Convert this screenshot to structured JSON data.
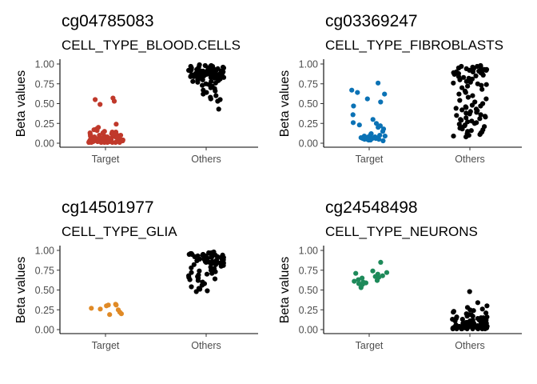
{
  "chart_data": [
    {
      "type": "scatter",
      "title": "cg04785083",
      "subtitle": "CELL_TYPE_BLOOD.CELLS",
      "ylabel": "Beta values",
      "categories": [
        "Target",
        "Others"
      ],
      "ylim": [
        0,
        1
      ],
      "yticks": [
        "0.00",
        "0.25",
        "0.50",
        "0.75",
        "1.00"
      ],
      "target_color": "#c0392b",
      "series": [
        {
          "name": "Target",
          "color": "#c0392b",
          "values": [
            0.57,
            0.55,
            0.53,
            0.49,
            0.24,
            0.2,
            0.18,
            0.17,
            0.16,
            0.15,
            0.14,
            0.14,
            0.13,
            0.13,
            0.12,
            0.12,
            0.11,
            0.11,
            0.1,
            0.1,
            0.1,
            0.09,
            0.09,
            0.09,
            0.08,
            0.08,
            0.08,
            0.08,
            0.07,
            0.07,
            0.07,
            0.07,
            0.06,
            0.06,
            0.06,
            0.06,
            0.06,
            0.05,
            0.05,
            0.05,
            0.05,
            0.05,
            0.05,
            0.04,
            0.04,
            0.04,
            0.04,
            0.04,
            0.04,
            0.03,
            0.03,
            0.03,
            0.03,
            0.03,
            0.03,
            0.03,
            0.02,
            0.02,
            0.02,
            0.02,
            0.02,
            0.02,
            0.02,
            0.02,
            0.01,
            0.01,
            0.01,
            0.01,
            0.01,
            0.01,
            0.01,
            0.01,
            0.01
          ]
        },
        {
          "name": "Others",
          "color": "#000000",
          "values": [
            0.99,
            0.98,
            0.98,
            0.97,
            0.97,
            0.97,
            0.96,
            0.96,
            0.96,
            0.95,
            0.95,
            0.95,
            0.95,
            0.94,
            0.94,
            0.94,
            0.94,
            0.93,
            0.93,
            0.93,
            0.93,
            0.93,
            0.92,
            0.92,
            0.92,
            0.92,
            0.92,
            0.91,
            0.91,
            0.91,
            0.91,
            0.91,
            0.9,
            0.9,
            0.9,
            0.9,
            0.9,
            0.89,
            0.89,
            0.89,
            0.89,
            0.89,
            0.88,
            0.88,
            0.88,
            0.88,
            0.88,
            0.87,
            0.87,
            0.87,
            0.87,
            0.86,
            0.86,
            0.86,
            0.86,
            0.85,
            0.85,
            0.85,
            0.85,
            0.84,
            0.84,
            0.84,
            0.83,
            0.83,
            0.83,
            0.82,
            0.82,
            0.82,
            0.81,
            0.81,
            0.8,
            0.8,
            0.79,
            0.79,
            0.78,
            0.78,
            0.77,
            0.76,
            0.75,
            0.74,
            0.73,
            0.72,
            0.7,
            0.69,
            0.67,
            0.66,
            0.64,
            0.62,
            0.6,
            0.58,
            0.56,
            0.55,
            0.53,
            0.43
          ]
        }
      ]
    },
    {
      "type": "scatter",
      "title": "cg03369247",
      "subtitle": "CELL_TYPE_FIBROBLASTS",
      "ylabel": "Beta values",
      "categories": [
        "Target",
        "Others"
      ],
      "ylim": [
        0,
        1
      ],
      "yticks": [
        "0.00",
        "0.25",
        "0.50",
        "0.75",
        "1.00"
      ],
      "target_color": "#0b72b5",
      "series": [
        {
          "name": "Target",
          "color": "#0b72b5",
          "values": [
            0.76,
            0.67,
            0.64,
            0.62,
            0.56,
            0.52,
            0.47,
            0.36,
            0.3,
            0.26,
            0.25,
            0.23,
            0.22,
            0.2,
            0.18,
            0.15,
            0.12,
            0.11,
            0.1,
            0.09,
            0.09,
            0.08,
            0.08,
            0.07,
            0.07,
            0.06,
            0.06,
            0.06,
            0.05,
            0.05,
            0.05,
            0.04,
            0.04,
            0.04,
            0.03
          ]
        },
        {
          "name": "Others",
          "color": "#000000",
          "values": [
            0.98,
            0.97,
            0.97,
            0.96,
            0.96,
            0.95,
            0.95,
            0.94,
            0.94,
            0.93,
            0.93,
            0.92,
            0.92,
            0.91,
            0.91,
            0.9,
            0.9,
            0.89,
            0.89,
            0.88,
            0.88,
            0.87,
            0.86,
            0.85,
            0.84,
            0.83,
            0.82,
            0.81,
            0.8,
            0.79,
            0.78,
            0.77,
            0.76,
            0.75,
            0.74,
            0.73,
            0.72,
            0.7,
            0.68,
            0.66,
            0.64,
            0.62,
            0.6,
            0.58,
            0.56,
            0.54,
            0.52,
            0.5,
            0.48,
            0.47,
            0.46,
            0.45,
            0.44,
            0.43,
            0.42,
            0.41,
            0.4,
            0.39,
            0.38,
            0.37,
            0.36,
            0.35,
            0.34,
            0.33,
            0.32,
            0.31,
            0.3,
            0.29,
            0.28,
            0.27,
            0.26,
            0.25,
            0.24,
            0.23,
            0.22,
            0.21,
            0.2,
            0.19,
            0.18,
            0.17,
            0.16,
            0.15,
            0.14,
            0.13,
            0.12,
            0.11,
            0.1,
            0.09,
            0.08
          ]
        }
      ]
    },
    {
      "type": "scatter",
      "title": "cg14501977",
      "subtitle": "CELL_TYPE_GLIA",
      "ylabel": "Beta values",
      "categories": [
        "Target",
        "Others"
      ],
      "ylim": [
        0,
        1
      ],
      "yticks": [
        "0.00",
        "0.25",
        "0.50",
        "0.75",
        "1.00"
      ],
      "target_color": "#e08a26",
      "series": [
        {
          "name": "Target",
          "color": "#e08a26",
          "values": [
            0.32,
            0.31,
            0.31,
            0.3,
            0.27,
            0.26,
            0.25,
            0.22,
            0.2,
            0.19
          ]
        },
        {
          "name": "Others",
          "color": "#000000",
          "values": [
            0.98,
            0.97,
            0.97,
            0.96,
            0.96,
            0.95,
            0.95,
            0.95,
            0.94,
            0.94,
            0.94,
            0.93,
            0.93,
            0.93,
            0.92,
            0.92,
            0.92,
            0.91,
            0.91,
            0.91,
            0.9,
            0.9,
            0.9,
            0.89,
            0.89,
            0.89,
            0.88,
            0.88,
            0.88,
            0.87,
            0.87,
            0.86,
            0.86,
            0.85,
            0.85,
            0.84,
            0.84,
            0.83,
            0.83,
            0.82,
            0.82,
            0.81,
            0.8,
            0.79,
            0.78,
            0.77,
            0.76,
            0.75,
            0.74,
            0.73,
            0.72,
            0.71,
            0.7,
            0.69,
            0.68,
            0.67,
            0.66,
            0.65,
            0.64,
            0.63,
            0.62,
            0.6,
            0.58,
            0.56,
            0.54,
            0.52,
            0.51,
            0.49,
            0.48
          ]
        }
      ]
    },
    {
      "type": "scatter",
      "title": "cg24548498",
      "subtitle": "CELL_TYPE_NEURONS",
      "ylabel": "Beta values",
      "categories": [
        "Target",
        "Others"
      ],
      "ylim": [
        0,
        1
      ],
      "yticks": [
        "0.00",
        "0.25",
        "0.50",
        "0.75",
        "1.00"
      ],
      "target_color": "#1e8a5a",
      "series": [
        {
          "name": "Target",
          "color": "#1e8a5a",
          "values": [
            0.85,
            0.74,
            0.72,
            0.71,
            0.7,
            0.68,
            0.67,
            0.66,
            0.65,
            0.63,
            0.62,
            0.61,
            0.6,
            0.59,
            0.58,
            0.57,
            0.53
          ]
        },
        {
          "name": "Others",
          "color": "#000000",
          "values": [
            0.48,
            0.34,
            0.3,
            0.28,
            0.26,
            0.25,
            0.24,
            0.23,
            0.22,
            0.21,
            0.2,
            0.19,
            0.19,
            0.18,
            0.17,
            0.17,
            0.16,
            0.16,
            0.15,
            0.15,
            0.14,
            0.14,
            0.13,
            0.13,
            0.12,
            0.12,
            0.12,
            0.11,
            0.11,
            0.11,
            0.1,
            0.1,
            0.1,
            0.09,
            0.09,
            0.09,
            0.09,
            0.08,
            0.08,
            0.08,
            0.08,
            0.07,
            0.07,
            0.07,
            0.07,
            0.07,
            0.06,
            0.06,
            0.06,
            0.06,
            0.06,
            0.05,
            0.05,
            0.05,
            0.05,
            0.05,
            0.05,
            0.04,
            0.04,
            0.04,
            0.04,
            0.04,
            0.04,
            0.03,
            0.03,
            0.03,
            0.03,
            0.03,
            0.03,
            0.03,
            0.02,
            0.02,
            0.02,
            0.02,
            0.02,
            0.02,
            0.02,
            0.01,
            0.01,
            0.01,
            0.01,
            0.01,
            0.01,
            0.01,
            0.01,
            0.01
          ]
        }
      ]
    }
  ]
}
